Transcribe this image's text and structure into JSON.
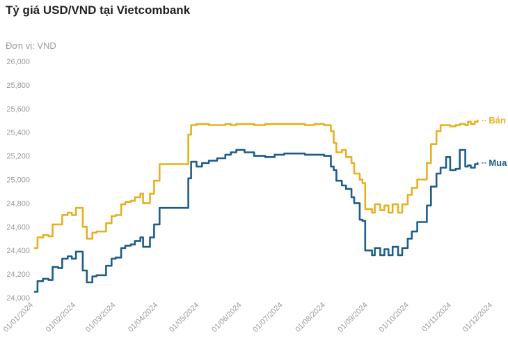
{
  "chart_data": {
    "type": "line",
    "title": "Tỷ giá USD/VND tại Vietcombank",
    "unit_label": "Đơn vị: VND",
    "ylim": [
      24000,
      26000
    ],
    "yticks": [
      24000,
      24200,
      24400,
      24600,
      24800,
      25000,
      25200,
      25400,
      25600,
      25800,
      26000
    ],
    "ytick_labels": [
      "24,000",
      "24,200",
      "24,400",
      "24,600",
      "24,800",
      "25,000",
      "25,200",
      "25,400",
      "25,600",
      "25,800",
      "26,000"
    ],
    "xlim": [
      "2024-01-01",
      "2024-12-01"
    ],
    "xticks": [
      "2024-01-01",
      "2024-02-01",
      "2024-03-01",
      "2024-04-01",
      "2024-05-01",
      "2024-06-01",
      "2024-07-01",
      "2024-08-01",
      "2024-09-01",
      "2024-10-01",
      "2024-11-01",
      "2024-12-01"
    ],
    "xtick_labels": [
      "01/01/2024",
      "01/02/2024",
      "01/03/2024",
      "01/04/2024",
      "01/05/2024",
      "01/06/2024",
      "01/07/2024",
      "01/08/2024",
      "01/09/2024",
      "01/10/2024",
      "01/11/2024",
      "01/12/2024"
    ],
    "grid": false,
    "series": [
      {
        "name": "Bán",
        "color": "#e8b020",
        "points": [
          [
            "2024-01-02",
            24420
          ],
          [
            "2024-01-04",
            24510
          ],
          [
            "2024-01-08",
            24530
          ],
          [
            "2024-01-12",
            24520
          ],
          [
            "2024-01-15",
            24620
          ],
          [
            "2024-01-19",
            24620
          ],
          [
            "2024-01-22",
            24700
          ],
          [
            "2024-01-26",
            24720
          ],
          [
            "2024-01-29",
            24700
          ],
          [
            "2024-02-01",
            24760
          ],
          [
            "2024-02-05",
            24760
          ],
          [
            "2024-02-06",
            24600
          ],
          [
            "2024-02-09",
            24500
          ],
          [
            "2024-02-13",
            24550
          ],
          [
            "2024-02-16",
            24560
          ],
          [
            "2024-02-20",
            24560
          ],
          [
            "2024-02-23",
            24630
          ],
          [
            "2024-02-27",
            24690
          ],
          [
            "2024-03-01",
            24700
          ],
          [
            "2024-03-05",
            24790
          ],
          [
            "2024-03-08",
            24810
          ],
          [
            "2024-03-12",
            24820
          ],
          [
            "2024-03-15",
            24850
          ],
          [
            "2024-03-19",
            24880
          ],
          [
            "2024-03-21",
            24800
          ],
          [
            "2024-03-26",
            24880
          ],
          [
            "2024-03-29",
            24990
          ],
          [
            "2024-04-02",
            25130
          ],
          [
            "2024-04-08",
            25130
          ],
          [
            "2024-04-12",
            25130
          ],
          [
            "2024-04-16",
            25130
          ],
          [
            "2024-04-19",
            25130
          ],
          [
            "2024-04-23",
            25380
          ],
          [
            "2024-04-25",
            25460
          ],
          [
            "2024-04-29",
            25470
          ],
          [
            "2024-05-03",
            25470
          ],
          [
            "2024-05-08",
            25460
          ],
          [
            "2024-05-14",
            25460
          ],
          [
            "2024-05-20",
            25470
          ],
          [
            "2024-05-24",
            25460
          ],
          [
            "2024-05-28",
            25470
          ],
          [
            "2024-06-03",
            25470
          ],
          [
            "2024-06-10",
            25460
          ],
          [
            "2024-06-18",
            25470
          ],
          [
            "2024-06-25",
            25470
          ],
          [
            "2024-07-02",
            25470
          ],
          [
            "2024-07-10",
            25470
          ],
          [
            "2024-07-17",
            25460
          ],
          [
            "2024-07-24",
            25470
          ],
          [
            "2024-07-31",
            25460
          ],
          [
            "2024-08-05",
            25410
          ],
          [
            "2024-08-07",
            25310
          ],
          [
            "2024-08-09",
            25230
          ],
          [
            "2024-08-13",
            25250
          ],
          [
            "2024-08-16",
            25190
          ],
          [
            "2024-08-20",
            25140
          ],
          [
            "2024-08-22",
            25050
          ],
          [
            "2024-08-26",
            25000
          ],
          [
            "2024-08-28",
            24970
          ],
          [
            "2024-08-30",
            24750
          ],
          [
            "2024-09-04",
            24720
          ],
          [
            "2024-09-06",
            24790
          ],
          [
            "2024-09-10",
            24740
          ],
          [
            "2024-09-13",
            24780
          ],
          [
            "2024-09-16",
            24720
          ],
          [
            "2024-09-19",
            24790
          ],
          [
            "2024-09-23",
            24720
          ],
          [
            "2024-09-26",
            24790
          ],
          [
            "2024-09-30",
            24870
          ],
          [
            "2024-10-03",
            24930
          ],
          [
            "2024-10-07",
            25000
          ],
          [
            "2024-10-10",
            25000
          ],
          [
            "2024-10-14",
            25140
          ],
          [
            "2024-10-17",
            25300
          ],
          [
            "2024-10-21",
            25410
          ],
          [
            "2024-10-24",
            25460
          ],
          [
            "2024-10-28",
            25460
          ],
          [
            "2024-10-31",
            25450
          ],
          [
            "2024-11-04",
            25460
          ],
          [
            "2024-11-07",
            25470
          ],
          [
            "2024-11-11",
            25460
          ],
          [
            "2024-11-13",
            25490
          ],
          [
            "2024-11-15",
            25470
          ],
          [
            "2024-11-18",
            25490
          ],
          [
            "2024-11-20",
            25500
          ]
        ]
      },
      {
        "name": "Mua",
        "color": "#1d5d8a",
        "points": [
          [
            "2024-01-02",
            24050
          ],
          [
            "2024-01-04",
            24140
          ],
          [
            "2024-01-08",
            24160
          ],
          [
            "2024-01-12",
            24150
          ],
          [
            "2024-01-15",
            24260
          ],
          [
            "2024-01-19",
            24250
          ],
          [
            "2024-01-22",
            24330
          ],
          [
            "2024-01-26",
            24350
          ],
          [
            "2024-01-29",
            24330
          ],
          [
            "2024-02-01",
            24390
          ],
          [
            "2024-02-05",
            24390
          ],
          [
            "2024-02-06",
            24230
          ],
          [
            "2024-02-09",
            24130
          ],
          [
            "2024-02-13",
            24180
          ],
          [
            "2024-02-16",
            24190
          ],
          [
            "2024-02-20",
            24190
          ],
          [
            "2024-02-23",
            24270
          ],
          [
            "2024-02-27",
            24330
          ],
          [
            "2024-03-01",
            24340
          ],
          [
            "2024-03-05",
            24420
          ],
          [
            "2024-03-08",
            24440
          ],
          [
            "2024-03-12",
            24450
          ],
          [
            "2024-03-15",
            24480
          ],
          [
            "2024-03-19",
            24510
          ],
          [
            "2024-03-21",
            24430
          ],
          [
            "2024-03-26",
            24510
          ],
          [
            "2024-03-29",
            24620
          ],
          [
            "2024-04-02",
            24760
          ],
          [
            "2024-04-08",
            24760
          ],
          [
            "2024-04-12",
            24760
          ],
          [
            "2024-04-16",
            24760
          ],
          [
            "2024-04-19",
            24760
          ],
          [
            "2024-04-23",
            25010
          ],
          [
            "2024-04-25",
            25150
          ],
          [
            "2024-04-29",
            25110
          ],
          [
            "2024-05-03",
            25140
          ],
          [
            "2024-05-08",
            25160
          ],
          [
            "2024-05-14",
            25180
          ],
          [
            "2024-05-20",
            25210
          ],
          [
            "2024-05-24",
            25230
          ],
          [
            "2024-05-28",
            25250
          ],
          [
            "2024-06-03",
            25230
          ],
          [
            "2024-06-10",
            25200
          ],
          [
            "2024-06-18",
            25190
          ],
          [
            "2024-06-25",
            25210
          ],
          [
            "2024-07-02",
            25220
          ],
          [
            "2024-07-10",
            25220
          ],
          [
            "2024-07-17",
            25210
          ],
          [
            "2024-07-24",
            25210
          ],
          [
            "2024-07-31",
            25200
          ],
          [
            "2024-08-05",
            25110
          ],
          [
            "2024-08-07",
            25080
          ],
          [
            "2024-08-09",
            24990
          ],
          [
            "2024-08-13",
            24950
          ],
          [
            "2024-08-16",
            24920
          ],
          [
            "2024-08-20",
            24850
          ],
          [
            "2024-08-22",
            24800
          ],
          [
            "2024-08-26",
            24660
          ],
          [
            "2024-08-28",
            24650
          ],
          [
            "2024-08-30",
            24400
          ],
          [
            "2024-09-04",
            24360
          ],
          [
            "2024-09-06",
            24420
          ],
          [
            "2024-09-10",
            24360
          ],
          [
            "2024-09-13",
            24410
          ],
          [
            "2024-09-16",
            24360
          ],
          [
            "2024-09-19",
            24430
          ],
          [
            "2024-09-23",
            24360
          ],
          [
            "2024-09-26",
            24420
          ],
          [
            "2024-09-30",
            24500
          ],
          [
            "2024-10-03",
            24560
          ],
          [
            "2024-10-07",
            24640
          ],
          [
            "2024-10-10",
            24640
          ],
          [
            "2024-10-14",
            24780
          ],
          [
            "2024-10-17",
            24940
          ],
          [
            "2024-10-21",
            25050
          ],
          [
            "2024-10-24",
            25100
          ],
          [
            "2024-10-28",
            25190
          ],
          [
            "2024-10-31",
            25080
          ],
          [
            "2024-11-04",
            25090
          ],
          [
            "2024-11-07",
            25250
          ],
          [
            "2024-11-11",
            25110
          ],
          [
            "2024-11-13",
            25120
          ],
          [
            "2024-11-15",
            25100
          ],
          [
            "2024-11-18",
            25130
          ],
          [
            "2024-11-20",
            25140
          ]
        ]
      }
    ]
  }
}
